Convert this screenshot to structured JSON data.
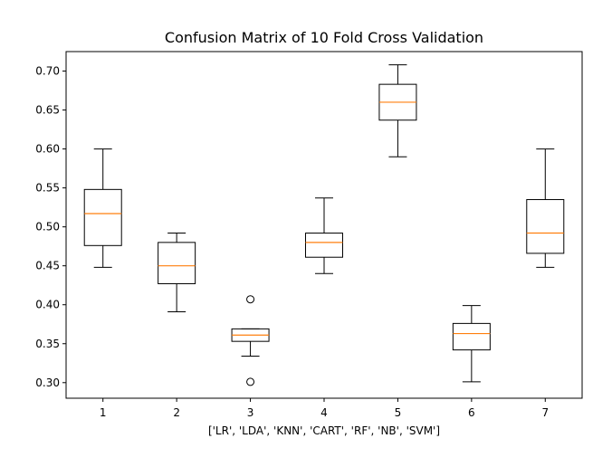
{
  "chart_data": {
    "type": "boxplot",
    "title": "Confusion Matrix of 10 Fold Cross Validation",
    "xlabel": "['LR', 'LDA', 'KNN', 'CART', 'RF', 'NB', 'SVM']",
    "ylabel": "",
    "categories": [
      "1",
      "2",
      "3",
      "4",
      "5",
      "6",
      "7"
    ],
    "ylim": [
      0.28,
      0.725
    ],
    "yticks": [
      "0.30",
      "0.35",
      "0.40",
      "0.45",
      "0.50",
      "0.55",
      "0.60",
      "0.65",
      "0.70"
    ],
    "grid": false,
    "box_color": "#000000",
    "median_color": "#ff7f0e",
    "boxes": [
      {
        "whisker_low": 0.448,
        "q1": 0.476,
        "median": 0.517,
        "q3": 0.548,
        "whisker_high": 0.6,
        "outliers": []
      },
      {
        "whisker_low": 0.391,
        "q1": 0.427,
        "median": 0.45,
        "q3": 0.48,
        "whisker_high": 0.492,
        "outliers": []
      },
      {
        "whisker_low": 0.334,
        "q1": 0.353,
        "median": 0.361,
        "q3": 0.369,
        "whisker_high": 0.369,
        "outliers": [
          0.407,
          0.301
        ]
      },
      {
        "whisker_low": 0.44,
        "q1": 0.461,
        "median": 0.48,
        "q3": 0.492,
        "whisker_high": 0.537,
        "outliers": []
      },
      {
        "whisker_low": 0.59,
        "q1": 0.637,
        "median": 0.66,
        "q3": 0.683,
        "whisker_high": 0.708,
        "outliers": []
      },
      {
        "whisker_low": 0.301,
        "q1": 0.342,
        "median": 0.363,
        "q3": 0.376,
        "whisker_high": 0.399,
        "outliers": []
      },
      {
        "whisker_low": 0.448,
        "q1": 0.466,
        "median": 0.492,
        "q3": 0.535,
        "whisker_high": 0.6,
        "outliers": []
      }
    ]
  }
}
